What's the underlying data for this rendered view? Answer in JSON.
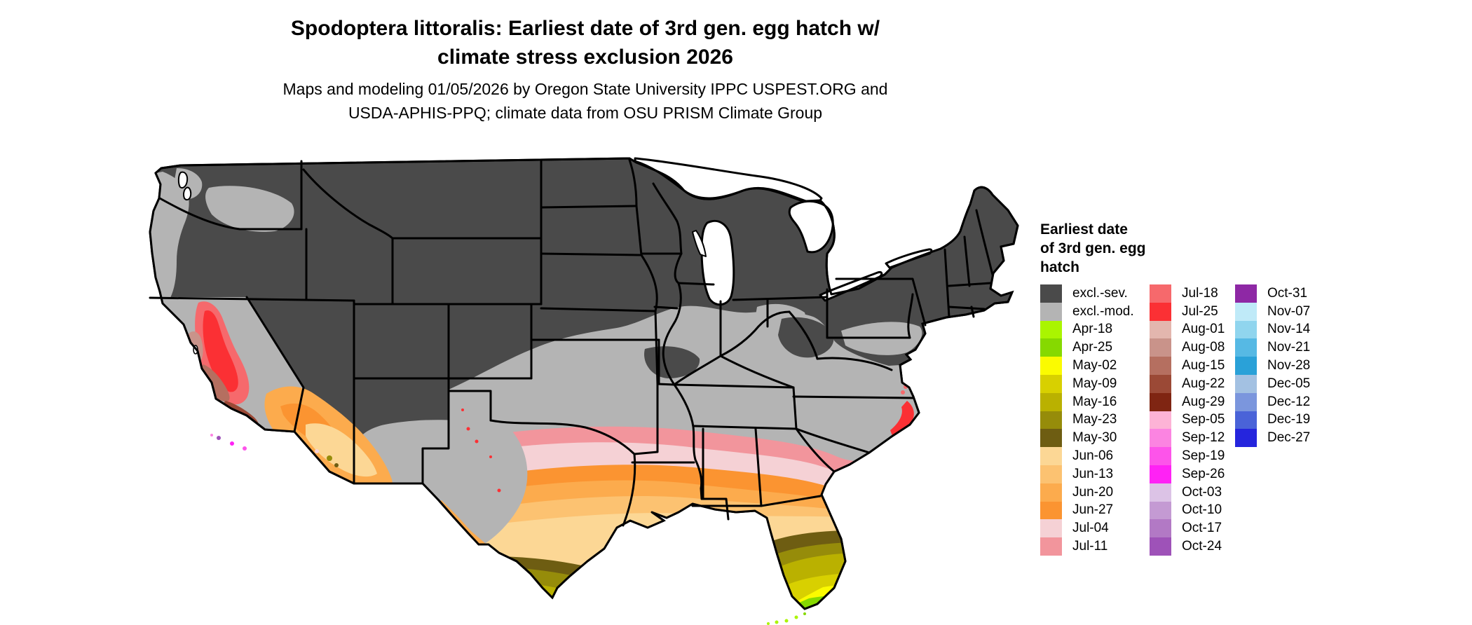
{
  "header": {
    "title": "Spodoptera littoralis: Earliest date of 3rd gen. egg hatch w/\nclimate stress exclusion 2026",
    "subtitle": "Maps and modeling 01/05/2026 by Oregon State University IPPC USPEST.ORG and\nUSDA-APHIS-PPQ; climate data from OSU PRISM Climate Group"
  },
  "legend": {
    "title": "Earliest date\nof 3rd gen. egg\nhatch",
    "columns": [
      [
        {
          "code": "excl_sev",
          "label": "excl.-sev."
        },
        {
          "code": "excl_mod",
          "label": "excl.-mod."
        },
        {
          "code": "apr18",
          "label": "Apr-18"
        },
        {
          "code": "apr25",
          "label": "Apr-25"
        },
        {
          "code": "may02",
          "label": "May-02"
        },
        {
          "code": "may09",
          "label": "May-09"
        },
        {
          "code": "may16",
          "label": "May-16"
        },
        {
          "code": "may23",
          "label": "May-23"
        },
        {
          "code": "may30",
          "label": "May-30"
        },
        {
          "code": "jun06",
          "label": "Jun-06"
        },
        {
          "code": "jun13",
          "label": "Jun-13"
        },
        {
          "code": "jun20",
          "label": "Jun-20"
        },
        {
          "code": "jun27",
          "label": "Jun-27"
        },
        {
          "code": "jul04",
          "label": "Jul-04"
        },
        {
          "code": "jul11",
          "label": "Jul-11"
        }
      ],
      [
        {
          "code": "jul18",
          "label": "Jul-18"
        },
        {
          "code": "jul25",
          "label": "Jul-25"
        },
        {
          "code": "aug01",
          "label": "Aug-01"
        },
        {
          "code": "aug08",
          "label": "Aug-08"
        },
        {
          "code": "aug15",
          "label": "Aug-15"
        },
        {
          "code": "aug22",
          "label": "Aug-22"
        },
        {
          "code": "aug29",
          "label": "Aug-29"
        },
        {
          "code": "sep05",
          "label": "Sep-05"
        },
        {
          "code": "sep12",
          "label": "Sep-12"
        },
        {
          "code": "sep19",
          "label": "Sep-19"
        },
        {
          "code": "sep26",
          "label": "Sep-26"
        },
        {
          "code": "oct03",
          "label": "Oct-03"
        },
        {
          "code": "oct10",
          "label": "Oct-10"
        },
        {
          "code": "oct17",
          "label": "Oct-17"
        },
        {
          "code": "oct24",
          "label": "Oct-24"
        }
      ],
      [
        {
          "code": "oct31",
          "label": "Oct-31"
        },
        {
          "code": "nov07",
          "label": "Nov-07"
        },
        {
          "code": "nov14",
          "label": "Nov-14"
        },
        {
          "code": "nov21",
          "label": "Nov-21"
        },
        {
          "code": "nov28",
          "label": "Nov-28"
        },
        {
          "code": "dec05",
          "label": "Dec-05"
        },
        {
          "code": "dec12",
          "label": "Dec-12"
        },
        {
          "code": "dec19",
          "label": "Dec-19"
        },
        {
          "code": "dec27",
          "label": "Dec-27"
        }
      ]
    ]
  },
  "palette": {
    "excl_sev": "#4a4a4a",
    "excl_mod": "#b4b4b4",
    "apr18": "#aaf500",
    "apr25": "#86d900",
    "may02": "#fbfb00",
    "may09": "#d8d000",
    "may16": "#bab100",
    "may23": "#968c0a",
    "may30": "#6e5d12",
    "jun06": "#fcd795",
    "jun13": "#fcc271",
    "jun20": "#fcab4d",
    "jun27": "#fb9431",
    "jul04": "#f5d1d5",
    "jul11": "#f2959c",
    "jul18": "#f6696c",
    "jul25": "#fb3034",
    "aug01": "#e3b6ae",
    "aug08": "#c9938a",
    "aug15": "#b56f60",
    "aug22": "#9b4936",
    "aug29": "#7f2512",
    "sep05": "#fdb3d6",
    "sep12": "#fb84e1",
    "sep19": "#fd54ea",
    "sep26": "#ff22f5",
    "oct03": "#dcc3e6",
    "oct10": "#c49ad3",
    "oct17": "#b279c5",
    "oct24": "#9e52b8",
    "oct31": "#8e28a5",
    "nov07": "#bfeaf8",
    "nov14": "#90d5ee",
    "nov21": "#56b9e4",
    "nov28": "#2aa1d8",
    "dec05": "#a3c1e2",
    "dec12": "#7b96dd",
    "dec19": "#4a63d8",
    "dec27": "#2525dd"
  },
  "map": {
    "description": "Contiguous United States choropleth of earliest 3rd generation egg hatch date"
  }
}
